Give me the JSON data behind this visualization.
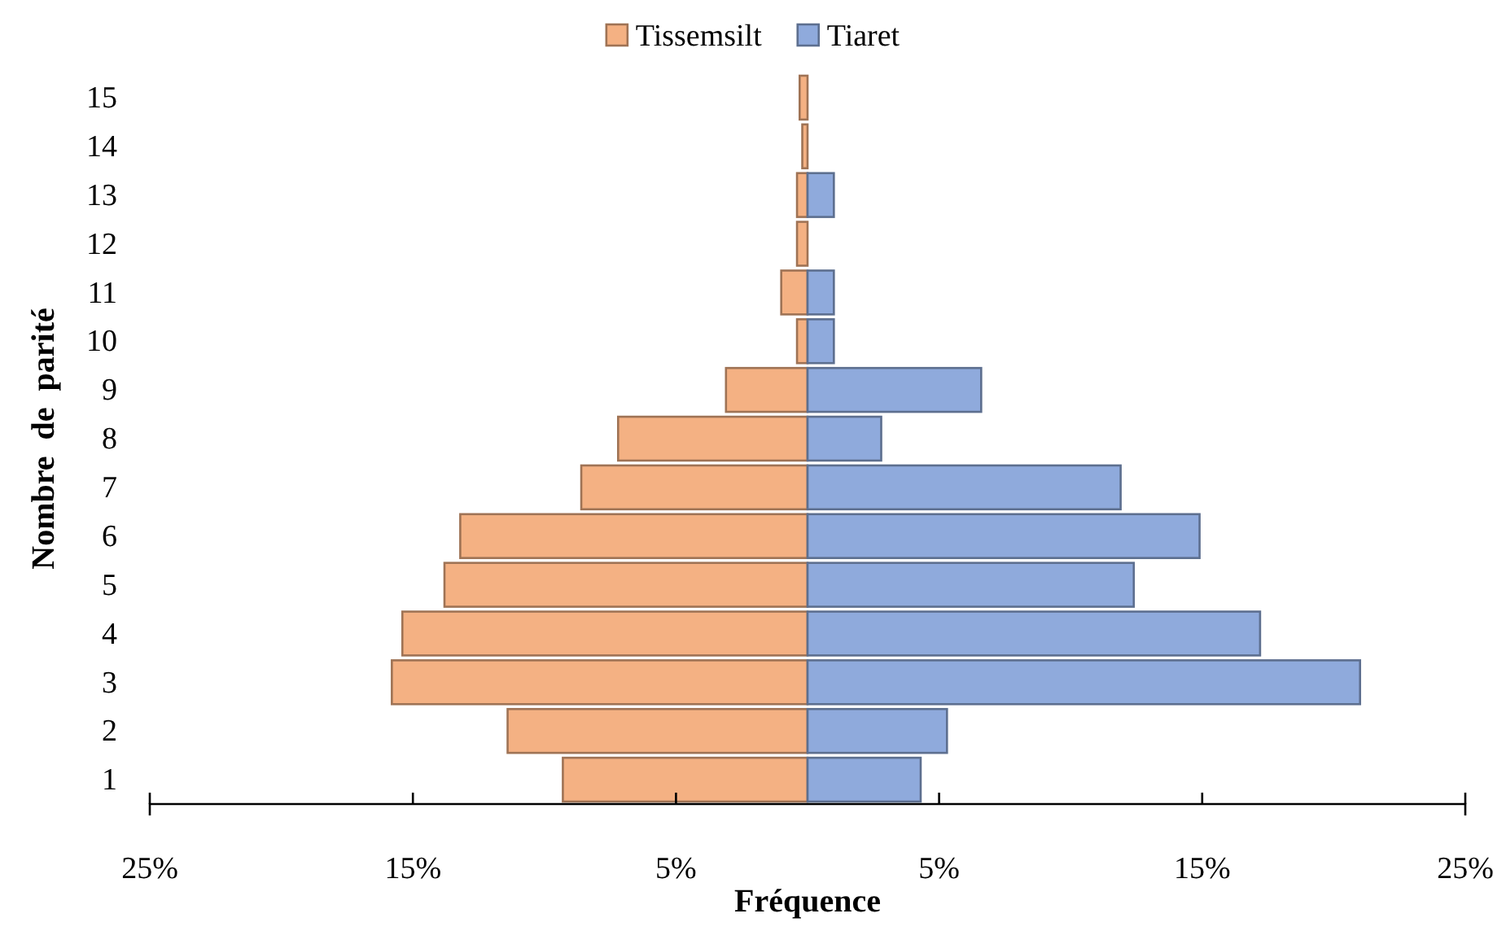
{
  "chart_data": {
    "type": "bar",
    "orientation": "horizontal",
    "xlabel": "Fréquence",
    "ylabel": "Nombre  de  parité",
    "categories": [
      "15",
      "14",
      "13",
      "12",
      "11",
      "10",
      "9",
      "8",
      "7",
      "6",
      "5",
      "4",
      "3",
      "2",
      "1"
    ],
    "series": [
      {
        "name": "Tissemsilt",
        "color": "#f4b183",
        "values": [
          -0.3,
          -0.2,
          -0.4,
          -0.4,
          -1.0,
          -0.4,
          -3.1,
          -7.2,
          -8.6,
          -13.2,
          -13.8,
          -15.4,
          -15.8,
          -11.4,
          -9.3
        ]
      },
      {
        "name": "Tiaret",
        "color": "#8faadc",
        "values": [
          null,
          null,
          1.0,
          null,
          1.0,
          1.0,
          6.6,
          2.8,
          11.9,
          14.9,
          12.4,
          17.2,
          21.0,
          5.3,
          4.3
        ]
      }
    ],
    "xlim": [
      -25,
      25
    ],
    "xticks": [
      {
        "value": -25,
        "label": "25%"
      },
      {
        "value": -15,
        "label": "15%"
      },
      {
        "value": -5,
        "label": "5%"
      },
      {
        "value": 5,
        "label": "5%"
      },
      {
        "value": 15,
        "label": "15%"
      },
      {
        "value": 25,
        "label": "25%"
      }
    ],
    "legend": "top",
    "grid": false,
    "stacked": true
  }
}
